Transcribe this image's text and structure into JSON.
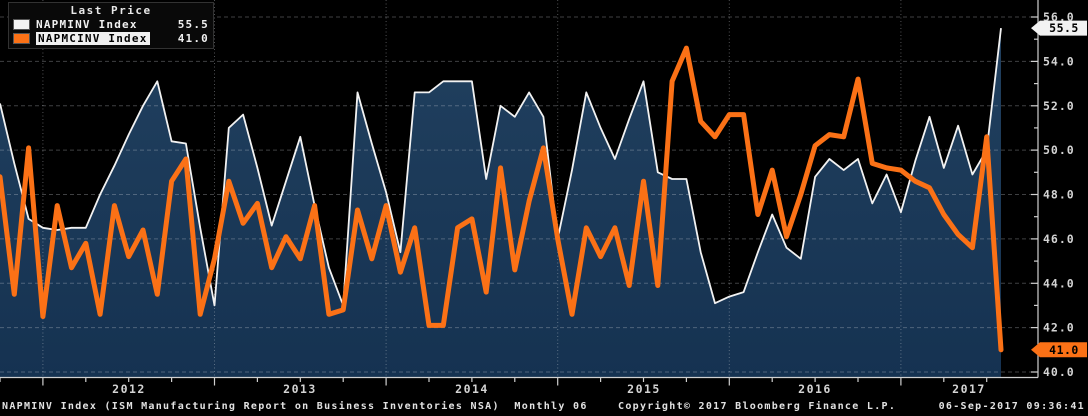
{
  "legend": {
    "title": "Last Price",
    "rows": [
      {
        "swatch": "#f2f2f2",
        "label": "NAPMINV Index",
        "value": "55.5",
        "highlighted": false
      },
      {
        "swatch": "#fb7116",
        "label": "NAPMCINV Index",
        "value": "41.0",
        "highlighted": true
      }
    ]
  },
  "footer": {
    "left": "NAPMINV Index (ISM Manufacturing Report on Business Inventories NSA)  Monthly 06",
    "copyright": "Copyright© 2017 Bloomberg Finance L.P.",
    "timestamp": "06-Sep-2017 09:36:41"
  },
  "colors": {
    "background": "#000000",
    "area_top": "#21405f",
    "area_bottom": "#153251",
    "grid": "#cfd4d9",
    "axis": "#d0d0d0",
    "label": "#d4d4d4",
    "white_line": "#f2f2f2",
    "orange_line": "#fb7116",
    "badge_white_bg": "#f2f2f2",
    "badge_orange_bg": "#fb7116",
    "badge_text": "#000000",
    "legend_bg": "#090909"
  },
  "chart_data": {
    "type": "line",
    "frequency": "monthly",
    "x_start": "2011-10",
    "x_end": "2017-08",
    "ylim": [
      40,
      56
    ],
    "ytick_step": 2,
    "ytick_minor_step": 1,
    "yaxis_side": "right",
    "grid": {
      "horizontal": "dashed",
      "vertical": "dotted-yearly"
    },
    "year_labels": [
      "2012",
      "2013",
      "2014",
      "2015",
      "2016",
      "2017"
    ],
    "year_tick_indices": [
      3,
      15,
      27,
      39,
      51,
      63
    ],
    "months": [
      "2011-10",
      "2011-11",
      "2011-12",
      "2012-01",
      "2012-02",
      "2012-03",
      "2012-04",
      "2012-05",
      "2012-06",
      "2012-07",
      "2012-08",
      "2012-09",
      "2012-10",
      "2012-11",
      "2012-12",
      "2013-01",
      "2013-02",
      "2013-03",
      "2013-04",
      "2013-05",
      "2013-06",
      "2013-07",
      "2013-08",
      "2013-09",
      "2013-10",
      "2013-11",
      "2013-12",
      "2014-01",
      "2014-02",
      "2014-03",
      "2014-04",
      "2014-05",
      "2014-06",
      "2014-07",
      "2014-08",
      "2014-09",
      "2014-10",
      "2014-11",
      "2014-12",
      "2015-01",
      "2015-02",
      "2015-03",
      "2015-04",
      "2015-05",
      "2015-06",
      "2015-07",
      "2015-08",
      "2015-09",
      "2015-10",
      "2015-11",
      "2015-12",
      "2016-01",
      "2016-02",
      "2016-03",
      "2016-04",
      "2016-05",
      "2016-06",
      "2016-07",
      "2016-08",
      "2016-09",
      "2016-10",
      "2016-11",
      "2016-12",
      "2017-01",
      "2017-02",
      "2017-03",
      "2017-04",
      "2017-05",
      "2017-06",
      "2017-07",
      "2017-08"
    ],
    "series": [
      {
        "name": "NAPMINV Index",
        "style": "area-line",
        "color": "#f2f2f2",
        "last": 55.5,
        "values": [
          52.1,
          49.4,
          46.9,
          46.5,
          46.4,
          46.5,
          46.5,
          48.0,
          49.3,
          50.7,
          52.0,
          53.1,
          50.4,
          50.3,
          46.5,
          43.0,
          51.0,
          51.6,
          49.2,
          46.6,
          48.6,
          50.6,
          47.5,
          44.7,
          43.0,
          52.6,
          50.3,
          48.1,
          45.4,
          52.6,
          52.6,
          53.1,
          53.1,
          53.1,
          48.7,
          52.0,
          51.5,
          52.6,
          51.5,
          46.0,
          49.1,
          52.6,
          51.0,
          49.6,
          51.4,
          53.1,
          49.0,
          48.7,
          48.7,
          45.4,
          43.1,
          43.4,
          43.6,
          45.4,
          47.1,
          45.6,
          45.1,
          48.8,
          49.6,
          49.1,
          49.6,
          47.6,
          48.9,
          47.2,
          49.5,
          51.5,
          49.2,
          51.1,
          48.9,
          50.0,
          55.5
        ]
      },
      {
        "name": "NAPMCINV Index",
        "style": "line",
        "color": "#fb7116",
        "last": 41.0,
        "values": [
          48.8,
          43.5,
          50.1,
          42.5,
          47.5,
          44.7,
          45.8,
          42.6,
          47.5,
          45.2,
          46.4,
          43.5,
          48.6,
          49.6,
          42.6,
          45.1,
          48.6,
          46.7,
          47.6,
          44.7,
          46.1,
          45.1,
          47.5,
          42.6,
          42.8,
          47.3,
          45.1,
          47.5,
          44.5,
          46.5,
          42.1,
          42.1,
          46.5,
          46.9,
          43.6,
          49.2,
          44.6,
          47.7,
          50.1,
          46.0,
          42.6,
          46.5,
          45.2,
          46.5,
          43.9,
          48.6,
          43.9,
          53.1,
          54.6,
          51.3,
          50.6,
          51.6,
          51.6,
          47.1,
          49.1,
          46.1,
          48.0,
          50.2,
          50.7,
          50.6,
          53.2,
          49.4,
          49.2,
          49.1,
          48.6,
          48.3,
          47.1,
          46.2,
          45.6,
          50.6,
          41.0
        ]
      }
    ]
  }
}
